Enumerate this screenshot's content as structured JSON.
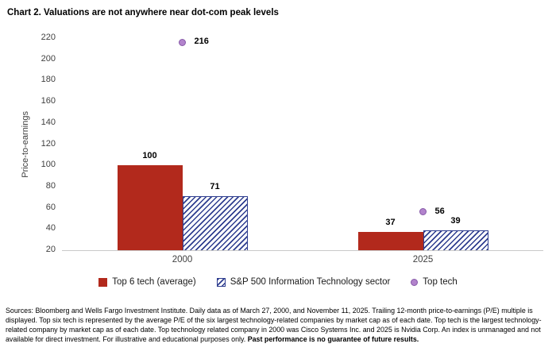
{
  "title": "Chart 2. Valuations are not anywhere near dot-com peak levels",
  "chart_data": {
    "type": "bar",
    "title": "Chart 2. Valuations are not anywhere near dot-com peak levels",
    "categories": [
      "2000",
      "2025"
    ],
    "series": [
      {
        "name": "Top 6 tech (average)",
        "kind": "bar",
        "style": "solid",
        "color": "#b2291c",
        "values": [
          100,
          37
        ]
      },
      {
        "name": "S&P 500 Information Technology sector",
        "kind": "bar",
        "style": "hatched",
        "color": "#2e3d8f",
        "values": [
          71,
          39
        ]
      },
      {
        "name": "Top tech",
        "kind": "point",
        "style": "dot",
        "color": "#b283cc",
        "border_color": "#8659a8",
        "values": [
          216,
          56
        ]
      }
    ],
    "xlabel": "",
    "ylabel": "Price-to-earnings",
    "ylim": [
      20,
      220
    ],
    "yticks": [
      220,
      200,
      180,
      160,
      140,
      120,
      100,
      80,
      60,
      40,
      20
    ],
    "grid": false,
    "legend_position": "bottom"
  },
  "footnote": {
    "text": "Sources: Bloomberg and Wells Fargo Investment Institute. Daily data as of March 27, 2000, and November 11, 2025. Trailing 12-month price-to-earnings (P/E) multiple is displayed. Top six tech is represented by the average P/E of the six largest technology-related companies by market cap as of each date. Top tech is the largest technology-related company by market cap as of each date. Top technology related company in 2000 was Cisco Systems Inc. and 2025 is Nvidia Corp. An index is unmanaged and not available for direct investment. For illustrative and educational purposes only. ",
    "bold": "Past performance is no guarantee of future results."
  }
}
